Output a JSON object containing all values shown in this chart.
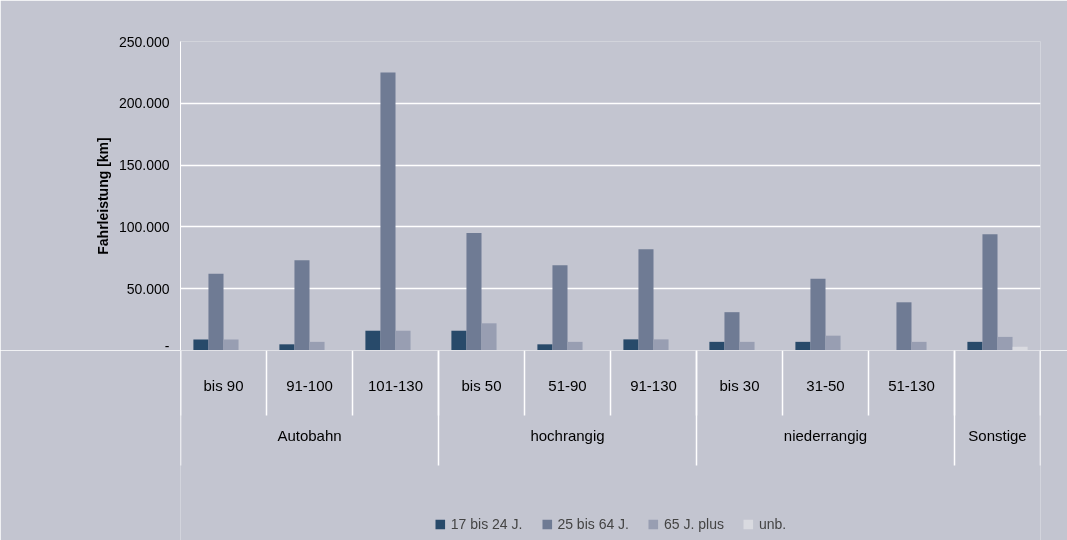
{
  "chart_data": {
    "type": "bar",
    "ylabel": "Fahrleistung [km]",
    "categories": [
      "bis 90",
      "91-100",
      "101-130",
      "bis 50",
      "51-90",
      "91-130",
      "bis 30",
      "31-50",
      "51-130",
      null
    ],
    "series": [
      {
        "name": "17 bis 24 J.",
        "color": "#284a6a",
        "values": [
          9000,
          5000,
          16000,
          16000,
          5000,
          9000,
          7000,
          7000,
          0,
          7000
        ]
      },
      {
        "name": "25 bis 64 J.",
        "color": "#6f7b94",
        "values": [
          62000,
          73000,
          225000,
          95000,
          69000,
          82000,
          31000,
          58000,
          39000,
          94000
        ]
      },
      {
        "name": "65 J. plus",
        "color": "#989eb2",
        "values": [
          9000,
          7000,
          16000,
          22000,
          7000,
          9000,
          7000,
          12000,
          7000,
          11000
        ]
      },
      {
        "name": "unb.",
        "color": "#d9dae0",
        "values": [
          0,
          0,
          0,
          0,
          0,
          0,
          0,
          0,
          0,
          3000
        ]
      }
    ],
    "annotations": [
      "Autobahn",
      "hochrangig",
      "niederrangig",
      "Sonstige"
    ],
    "ylim": [
      0,
      250000
    ],
    "yticks": [
      {
        "value": 0,
        "label": "-"
      },
      {
        "value": 50000,
        "label": "50.000"
      },
      {
        "value": 100000,
        "label": "100.000"
      },
      {
        "value": 150000,
        "label": "150.000"
      },
      {
        "value": 200000,
        "label": "200.000"
      },
      {
        "value": 250000,
        "label": "250.000"
      }
    ],
    "grid": "y",
    "legend": "bottom"
  }
}
